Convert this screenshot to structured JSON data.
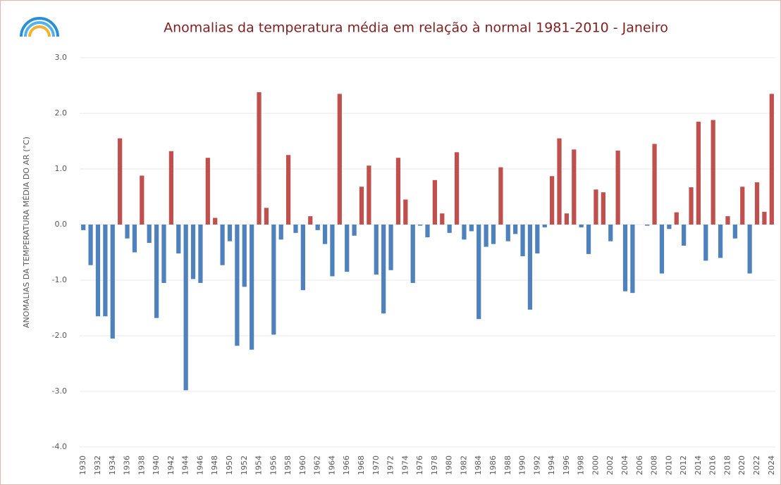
{
  "chart_data": {
    "type": "bar",
    "title": "Anomalias da temperatura média em relação à normal 1981-2010 - Janeiro",
    "ylabel": "ANOMALIAS DA TEMPERATURA MÉDIA DO AR (°C)",
    "categories": [
      "1930",
      null,
      "1932",
      null,
      "1934",
      null,
      "1936",
      null,
      "1938",
      null,
      "1940",
      null,
      "1942",
      null,
      "1944",
      null,
      "1946",
      null,
      "1948",
      null,
      "1950",
      null,
      "1952",
      null,
      "1954",
      null,
      "1956",
      null,
      "1958",
      null,
      "1960",
      null,
      "1962",
      null,
      "1964",
      null,
      "1966",
      null,
      "1968",
      null,
      "1970",
      null,
      "1972",
      null,
      "1974",
      null,
      "1976",
      null,
      "1978",
      null,
      "1980",
      null,
      "1982",
      null,
      "1984",
      null,
      "1986",
      null,
      "1988",
      null,
      "1990",
      null,
      "1992",
      null,
      "1994",
      null,
      "1996",
      null,
      "1998",
      null,
      "2000",
      null,
      "2002",
      null,
      "2004",
      null,
      "2006",
      null,
      "2008",
      null,
      "2010",
      null,
      "2012",
      null,
      "2014",
      null,
      "2016",
      null,
      "2018",
      null,
      "2020",
      null,
      "2022",
      null,
      "2024"
    ],
    "values": [
      -0.1,
      -0.73,
      -1.65,
      -1.65,
      -2.05,
      1.55,
      -0.25,
      -0.5,
      0.88,
      -0.33,
      -1.68,
      -1.05,
      1.32,
      -0.52,
      -2.98,
      -0.98,
      -1.05,
      1.2,
      0.12,
      -0.73,
      -0.3,
      -2.18,
      -1.12,
      -2.25,
      2.38,
      0.3,
      -1.98,
      -0.27,
      1.25,
      -0.15,
      -1.18,
      0.15,
      -0.1,
      -0.35,
      -0.93,
      2.35,
      -0.85,
      -0.2,
      0.68,
      1.06,
      -0.9,
      -1.6,
      -0.82,
      1.2,
      0.45,
      -1.05,
      -0.02,
      -0.23,
      0.8,
      0.2,
      -0.15,
      1.3,
      -0.27,
      -0.12,
      -1.7,
      -0.4,
      -0.35,
      1.03,
      -0.3,
      -0.17,
      -0.57,
      -1.53,
      -0.52,
      -0.05,
      0.87,
      1.55,
      0.2,
      1.35,
      -0.05,
      -0.53,
      0.63,
      0.58,
      -0.3,
      1.33,
      -1.2,
      -1.23,
      0.0,
      -0.02,
      1.45,
      -0.88,
      -0.08,
      0.22,
      -0.38,
      0.67,
      1.85,
      -0.65,
      1.88,
      -0.6,
      0.15,
      -0.25,
      0.68,
      -0.88,
      0.76,
      0.23,
      2.35
    ],
    "positive_color": "#c0504d",
    "negative_color": "#4f81bd",
    "ylim": [
      -4,
      3
    ],
    "yticks": [
      {
        "value": -4,
        "label": "-4.0"
      },
      {
        "value": -3,
        "label": "-3.0"
      },
      {
        "value": -2,
        "label": "-2.0"
      },
      {
        "value": -1,
        "label": "-1.0"
      },
      {
        "value": 0,
        "label": "0.0"
      },
      {
        "value": 1,
        "label": "1.0"
      },
      {
        "value": 2,
        "label": "2.0"
      },
      {
        "value": 3,
        "label": "3.0"
      }
    ],
    "grid": true
  }
}
